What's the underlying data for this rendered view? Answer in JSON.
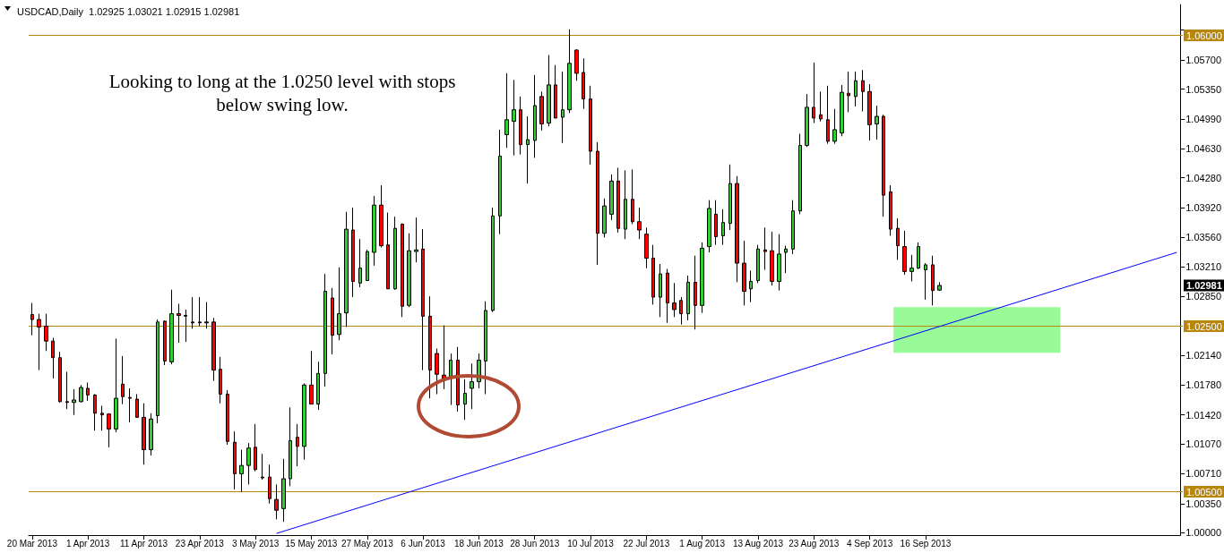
{
  "chart_data": {
    "type": "candlestick",
    "title": "USDCAD,Daily  1.02925 1.03021 1.02915 1.02981",
    "categories": [
      "20 Mar 2013",
      null,
      null,
      null,
      null,
      null,
      null,
      null,
      "1 Apr 2013",
      null,
      null,
      null,
      null,
      null,
      null,
      null,
      "11 Apr 2013",
      null,
      null,
      null,
      null,
      null,
      null,
      null,
      "23 Apr 2013",
      null,
      null,
      null,
      null,
      null,
      null,
      null,
      "3 May 2013",
      null,
      null,
      null,
      null,
      null,
      null,
      null,
      "15 May 2013",
      null,
      null,
      null,
      null,
      null,
      null,
      null,
      "27 May 2013",
      null,
      null,
      null,
      null,
      null,
      null,
      null,
      "6 Jun 2013",
      null,
      null,
      null,
      null,
      null,
      null,
      null,
      "18 Jun 2013",
      null,
      null,
      null,
      null,
      null,
      null,
      null,
      "28 Jun 2013",
      null,
      null,
      null,
      null,
      null,
      null,
      null,
      "10 Jul 2013",
      null,
      null,
      null,
      null,
      null,
      null,
      null,
      "22 Jul 2013",
      null,
      null,
      null,
      null,
      null,
      null,
      null,
      "1 Aug 2013",
      null,
      null,
      null,
      null,
      null,
      null,
      null,
      "13 Aug 2013",
      null,
      null,
      null,
      null,
      null,
      null,
      null,
      "23 Aug 2013",
      null,
      null,
      null,
      null,
      null,
      null,
      null,
      "4 Sep 2013",
      null,
      null,
      null,
      null,
      null,
      null,
      null,
      "16 Sep 2013",
      null,
      null,
      null,
      null,
      null,
      null,
      null,
      null,
      null,
      null,
      null,
      null,
      null,
      null,
      null,
      null,
      null,
      null,
      null,
      null,
      null,
      null,
      null,
      null,
      null,
      null,
      null,
      null,
      null,
      null,
      null,
      null,
      null,
      null,
      null,
      null
    ],
    "ohlc": [
      [
        1.0263,
        1.0277,
        1.0238,
        1.0257
      ],
      [
        1.0257,
        1.0264,
        1.0196,
        1.0248
      ],
      [
        1.0249,
        1.0264,
        1.0219,
        1.0231
      ],
      [
        1.0231,
        1.0235,
        1.0186,
        1.0211
      ],
      [
        1.0211,
        1.0218,
        1.0157,
        1.0158
      ],
      [
        1.0158,
        1.0194,
        1.0149,
        1.0157
      ],
      [
        1.0157,
        1.0173,
        1.0142,
        1.016
      ],
      [
        1.0158,
        1.0178,
        1.0157,
        1.0175
      ],
      [
        1.0174,
        1.0181,
        1.0159,
        1.0166
      ],
      [
        1.0166,
        1.0167,
        1.0123,
        1.0144
      ],
      [
        1.0144,
        1.0153,
        1.0123,
        1.0142
      ],
      [
        1.0143,
        1.0144,
        1.0103,
        1.0125
      ],
      [
        1.0125,
        1.0234,
        1.0121,
        1.0162
      ],
      [
        1.0179,
        1.0213,
        1.0155,
        1.0164
      ],
      [
        1.0163,
        1.0174,
        1.0133,
        1.0162
      ],
      [
        1.0161,
        1.0167,
        1.0139,
        1.0139
      ],
      [
        1.0139,
        1.0156,
        1.0082,
        1.01
      ],
      [
        1.01,
        1.0144,
        1.0093,
        1.0137
      ],
      [
        1.0141,
        1.0257,
        1.0132,
        1.0254
      ],
      [
        1.0255,
        1.0256,
        1.0202,
        1.0207
      ],
      [
        1.0206,
        1.0293,
        1.0203,
        1.0264
      ],
      [
        1.0264,
        1.0276,
        1.0229,
        1.0262
      ],
      [
        1.0262,
        1.0269,
        1.023,
        1.0261
      ],
      [
        1.0254,
        1.0284,
        1.0246,
        1.0253
      ],
      [
        1.0254,
        1.0284,
        1.0249,
        1.0253
      ],
      [
        1.0254,
        1.0278,
        1.0246,
        1.0253
      ],
      [
        1.0254,
        1.0259,
        1.0183,
        1.0196
      ],
      [
        1.0197,
        1.0212,
        1.0156,
        1.0167
      ],
      [
        1.0167,
        1.0172,
        1.0106,
        1.011
      ],
      [
        1.0109,
        1.0122,
        1.0052,
        1.0071
      ],
      [
        1.0071,
        1.01,
        1.0049,
        1.0081
      ],
      [
        1.0081,
        1.0108,
        1.0058,
        1.0102
      ],
      [
        1.0103,
        1.0131,
        1.0074,
        1.0076
      ],
      [
        1.0067,
        1.0095,
        1.0064,
        1.0066
      ],
      [
        1.0067,
        1.0082,
        1.0035,
        1.0041
      ],
      [
        1.004,
        1.0058,
        1.0016,
        1.0027
      ],
      [
        1.0029,
        1.0089,
        1.0013,
        1.0065
      ],
      [
        1.0065,
        1.0151,
        1.0056,
        1.0111
      ],
      [
        1.0115,
        1.0131,
        1.008,
        1.0104
      ],
      [
        1.0104,
        1.018,
        1.0088,
        1.0178
      ],
      [
        1.0178,
        1.0219,
        1.0155,
        1.0155
      ],
      [
        1.0155,
        1.0206,
        1.0148,
        1.0192
      ],
      [
        1.0192,
        1.0312,
        1.0176,
        1.0291
      ],
      [
        1.0283,
        1.0295,
        1.0215,
        1.0238
      ],
      [
        1.0239,
        1.032,
        1.0232,
        1.0264
      ],
      [
        1.0265,
        1.0387,
        1.0248,
        1.0366
      ],
      [
        1.0365,
        1.0392,
        1.0284,
        1.0303
      ],
      [
        1.0301,
        1.0354,
        1.0296,
        1.0319
      ],
      [
        1.0304,
        1.0341,
        1.0304,
        1.0339
      ],
      [
        1.0338,
        1.0406,
        1.0322,
        1.0395
      ],
      [
        1.0395,
        1.0419,
        1.0344,
        1.0346
      ],
      [
        1.0347,
        1.0386,
        1.0294,
        1.0294
      ],
      [
        1.0294,
        1.0381,
        1.0293,
        1.0367
      ],
      [
        1.0372,
        1.0373,
        1.026,
        1.0273
      ],
      [
        1.0274,
        1.0361,
        1.0272,
        1.034
      ],
      [
        1.0339,
        1.038,
        1.0326,
        1.0341
      ],
      [
        1.0342,
        1.0366,
        1.0196,
        1.0261
      ],
      [
        1.0261,
        1.0285,
        1.0162,
        1.0196
      ],
      [
        1.0216,
        1.0222,
        1.0167,
        1.0191
      ],
      [
        1.019,
        1.025,
        1.0173,
        1.0186
      ],
      [
        1.0186,
        1.0216,
        1.0154,
        1.0208
      ],
      [
        1.0208,
        1.0224,
        1.0146,
        1.0154
      ],
      [
        1.0155,
        1.0185,
        1.0136,
        1.0168
      ],
      [
        1.0174,
        1.0204,
        1.0149,
        1.0182
      ],
      [
        1.0182,
        1.0216,
        1.0174,
        1.0208
      ],
      [
        1.0207,
        1.0279,
        1.0167,
        1.0268
      ],
      [
        1.0268,
        1.0392,
        1.0266,
        1.0382
      ],
      [
        1.0382,
        1.0486,
        1.036,
        1.0454
      ],
      [
        1.048,
        1.0554,
        1.0464,
        1.0498
      ],
      [
        1.0496,
        1.0546,
        1.0455,
        1.051
      ],
      [
        1.051,
        1.0526,
        1.0456,
        1.0468
      ],
      [
        1.0468,
        1.0502,
        1.0421,
        1.0474
      ],
      [
        1.0473,
        1.0552,
        1.0452,
        1.0515
      ],
      [
        1.0526,
        1.0532,
        1.0485,
        1.0493
      ],
      [
        1.0494,
        1.0576,
        1.049,
        1.054
      ],
      [
        1.054,
        1.0564,
        1.05,
        1.05
      ],
      [
        1.0501,
        1.0556,
        1.047,
        1.051
      ],
      [
        1.051,
        1.0607,
        1.0506,
        1.0566
      ],
      [
        1.0582,
        1.0583,
        1.0545,
        1.0554
      ],
      [
        1.0555,
        1.0572,
        1.0511,
        1.0523
      ],
      [
        1.0523,
        1.0539,
        1.0444,
        1.046
      ],
      [
        1.046,
        1.0471,
        1.0323,
        1.0361
      ],
      [
        1.0361,
        1.0403,
        1.0356,
        1.0394
      ],
      [
        1.0384,
        1.0432,
        1.0377,
        1.0424
      ],
      [
        1.0424,
        1.044,
        1.0362,
        1.0367
      ],
      [
        1.0366,
        1.0437,
        1.0354,
        1.0402
      ],
      [
        1.0402,
        1.0438,
        1.0372,
        1.0375
      ],
      [
        1.0375,
        1.0392,
        1.0354,
        1.0365
      ],
      [
        1.036,
        1.0368,
        1.0319,
        1.0331
      ],
      [
        1.0331,
        1.0347,
        1.0275,
        1.0284
      ],
      [
        1.0284,
        1.0324,
        1.026,
        1.0312
      ],
      [
        1.0313,
        1.0318,
        1.0253,
        1.0277
      ],
      [
        1.0277,
        1.0301,
        1.026,
        1.0269
      ],
      [
        1.028,
        1.0284,
        1.0251,
        1.0264
      ],
      [
        1.0264,
        1.031,
        1.0256,
        1.0302
      ],
      [
        1.0302,
        1.0334,
        1.0245,
        1.0274
      ],
      [
        1.0274,
        1.035,
        1.0265,
        1.0343
      ],
      [
        1.0345,
        1.0401,
        1.0338,
        1.0391
      ],
      [
        1.0384,
        1.0401,
        1.0347,
        1.0357
      ],
      [
        1.0358,
        1.039,
        1.0347,
        1.0374
      ],
      [
        1.0373,
        1.0444,
        1.0365,
        1.0421
      ],
      [
        1.0421,
        1.043,
        1.0302,
        1.0325
      ],
      [
        1.0325,
        1.0352,
        1.0274,
        1.0291
      ],
      [
        1.0294,
        1.0316,
        1.0278,
        1.0303
      ],
      [
        1.0304,
        1.0347,
        1.0301,
        1.0342
      ],
      [
        1.0341,
        1.0368,
        1.0317,
        1.0339
      ],
      [
        1.034,
        1.0363,
        1.0298,
        1.0303
      ],
      [
        1.0303,
        1.036,
        1.0292,
        1.0336
      ],
      [
        1.0338,
        1.0346,
        1.0313,
        1.0342
      ],
      [
        1.0342,
        1.0401,
        1.0336,
        1.0388
      ],
      [
        1.0388,
        1.0481,
        1.0384,
        1.0467
      ],
      [
        1.0467,
        1.0529,
        1.0465,
        1.0513
      ],
      [
        1.0513,
        1.0567,
        1.0494,
        1.05
      ],
      [
        1.0504,
        1.0532,
        1.0496,
        1.0499
      ],
      [
        1.0498,
        1.0539,
        1.0469,
        1.0472
      ],
      [
        1.0472,
        1.0511,
        1.0469,
        1.0486
      ],
      [
        1.0482,
        1.054,
        1.0478,
        1.0531
      ],
      [
        1.053,
        1.0556,
        1.0507,
        1.0527
      ],
      [
        1.0526,
        1.0556,
        1.0514,
        1.0545
      ],
      [
        1.0545,
        1.0558,
        1.0508,
        1.0532
      ],
      [
        1.0532,
        1.0541,
        1.0473,
        1.0492
      ],
      [
        1.0493,
        1.0515,
        1.0474,
        1.0502
      ],
      [
        1.0502,
        1.0504,
        1.0381,
        1.0407
      ],
      [
        1.0411,
        1.0419,
        1.0358,
        1.0366
      ],
      [
        1.0367,
        1.0379,
        1.0329,
        1.0346
      ],
      [
        1.0345,
        1.0364,
        1.0311,
        1.0315
      ],
      [
        1.0315,
        1.0335,
        1.0303,
        1.0319
      ],
      [
        1.0319,
        1.035,
        1.0318,
        1.0345
      ],
      [
        1.0317,
        1.0325,
        1.0281,
        1.0323
      ],
      [
        1.0323,
        1.0334,
        1.0274,
        1.0292
      ],
      [
        1.02925,
        1.03021,
        1.02915,
        1.02981
      ],
      null,
      null,
      null,
      null,
      null,
      null,
      null,
      null,
      null,
      null,
      null,
      null,
      null,
      null,
      null,
      null,
      null,
      null,
      null,
      null,
      null,
      null,
      null,
      null,
      null,
      null,
      null,
      null,
      null,
      null,
      null,
      null,
      null,
      null
    ],
    "colors": [
      "#ff0000",
      "#ff0000",
      "#ff0000",
      "#ff0000",
      "#ff0000",
      "#ff0000",
      "#32cd32",
      "#32cd32",
      "#ff0000",
      "#ff0000",
      "#ff0000",
      "#ff0000",
      "#32cd32",
      "#ff0000",
      "#ff0000",
      "#ff0000",
      "#ff0000",
      "#32cd32",
      "#32cd32",
      "#ff0000",
      "#32cd32",
      "#ff0000",
      "#ff0000",
      "#ff0000",
      "#ff0000",
      "#ff0000",
      "#ff0000",
      "#ff0000",
      "#ff0000",
      "#ff0000",
      "#32cd32",
      "#32cd32",
      "#ff0000",
      "#ff0000",
      "#ff0000",
      "#ff0000",
      "#32cd32",
      "#32cd32",
      "#ff0000",
      "#32cd32",
      "#ff0000",
      "#32cd32",
      "#32cd32",
      "#ff0000",
      "#32cd32",
      "#32cd32",
      "#ff0000",
      "#32cd32",
      "#32cd32",
      "#32cd32",
      "#ff0000",
      "#ff0000",
      "#32cd32",
      "#ff0000",
      "#32cd32",
      "#32cd32",
      "#ff0000",
      "#ff0000",
      "#ff0000",
      "#ff0000",
      "#32cd32",
      "#ff0000",
      "#32cd32",
      "#32cd32",
      "#32cd32",
      "#32cd32",
      "#32cd32",
      "#32cd32",
      "#32cd32",
      "#32cd32",
      "#ff0000",
      "#32cd32",
      "#32cd32",
      "#ff0000",
      "#32cd32",
      "#ff0000",
      "#32cd32",
      "#32cd32",
      "#ff0000",
      "#ff0000",
      "#ff0000",
      "#ff0000",
      "#32cd32",
      "#32cd32",
      "#ff0000",
      "#32cd32",
      "#ff0000",
      "#ff0000",
      "#ff0000",
      "#ff0000",
      "#32cd32",
      "#ff0000",
      "#ff0000",
      "#ff0000",
      "#32cd32",
      "#ff0000",
      "#32cd32",
      "#32cd32",
      "#ff0000",
      "#32cd32",
      "#32cd32",
      "#ff0000",
      "#ff0000",
      "#32cd32",
      "#32cd32",
      "#ff0000",
      "#ff0000",
      "#32cd32",
      "#32cd32",
      "#32cd32",
      "#32cd32",
      "#32cd32",
      "#ff0000",
      "#ff0000",
      "#ff0000",
      "#32cd32",
      "#32cd32",
      "#ff0000",
      "#32cd32",
      "#ff0000",
      "#ff0000",
      "#32cd32",
      "#ff0000",
      "#ff0000",
      "#ff0000",
      "#ff0000",
      "#32cd32",
      "#32cd32",
      "#32cd32",
      "#ff0000",
      "#32cd32",
      null,
      null,
      null,
      null,
      null,
      null,
      null,
      null,
      null,
      null,
      null,
      null,
      null,
      null,
      null,
      null,
      null,
      null,
      null,
      null,
      null,
      null,
      null,
      null,
      null,
      null,
      null,
      null,
      null,
      null,
      null,
      null,
      null,
      null
    ],
    "series": [
      {
        "type": "line",
        "color": "#0000ff",
        "values": [
          null,
          null,
          null,
          null,
          null,
          null,
          null,
          null,
          null,
          null,
          null,
          null,
          null,
          null,
          null,
          null,
          null,
          null,
          null,
          null,
          null,
          null,
          null,
          null,
          null,
          null,
          null,
          null,
          null,
          null,
          null,
          null,
          null,
          null,
          null,
          0.9999,
          null,
          null,
          null,
          null,
          null,
          null,
          null,
          null,
          null,
          null,
          null,
          null,
          null,
          null,
          null,
          null,
          null,
          null,
          null,
          null,
          null,
          null,
          null,
          null,
          null,
          null,
          null,
          null,
          null,
          null,
          null,
          null,
          null,
          null,
          null,
          null,
          null,
          null,
          null,
          null,
          null,
          null,
          null,
          null,
          null,
          null,
          null,
          null,
          null,
          null,
          null,
          null,
          null,
          null,
          null,
          null,
          null,
          null,
          null,
          null,
          null,
          null,
          null,
          null,
          null,
          null,
          null,
          null,
          null,
          null,
          null,
          null,
          null,
          null,
          null,
          null,
          null,
          null,
          null,
          null,
          null,
          null,
          null,
          null,
          null,
          null,
          null,
          null,
          null,
          null,
          null,
          null,
          null,
          null,
          null,
          null,
          null,
          null,
          null,
          null,
          null,
          null,
          null,
          null,
          null,
          null,
          null,
          null,
          null,
          null,
          null,
          null,
          null,
          null,
          null,
          null,
          null,
          null,
          null,
          null,
          null,
          null,
          null,
          null,
          null,
          null,
          null,
          null,
          1.0338
        ]
      }
    ],
    "ylim": [
      0.9997,
      1.0637
    ],
    "yticks": [
      {
        "value": 1.0,
        "label": "1.00000"
      },
      {
        "value": 1.0035,
        "label": "1.00350"
      },
      {
        "value": 1.0071,
        "label": "1.00710"
      },
      {
        "value": 1.0107,
        "label": "1.01070"
      },
      {
        "value": 1.0142,
        "label": "1.01420"
      },
      {
        "value": 1.0178,
        "label": "1.01780"
      },
      {
        "value": 1.0214,
        "label": "1.02140"
      },
      {
        "value": 1.0285,
        "label": "1.02850"
      },
      {
        "value": 1.0321,
        "label": "1.03210"
      },
      {
        "value": 1.0356,
        "label": "1.03560"
      },
      {
        "value": 1.0392,
        "label": "1.03920"
      },
      {
        "value": 1.0428,
        "label": "1.04280"
      },
      {
        "value": 1.0463,
        "label": "1.04630"
      },
      {
        "value": 1.0499,
        "label": "1.04990"
      },
      {
        "value": 1.0535,
        "label": "1.05350"
      },
      {
        "value": 1.057,
        "label": "1.05700"
      },
      {
        "value": 1.0606,
        "label": null
      }
    ],
    "ref_lines": [
      {
        "axis": "y",
        "value": 1.06,
        "label": "1.06000",
        "color": "#b8860b"
      },
      {
        "axis": "y",
        "value": 1.025,
        "label": "1.02500",
        "color": "#b8860b"
      },
      {
        "axis": "y",
        "value": 1.005,
        "label": "1.00500",
        "color": "#b8860b"
      }
    ],
    "bands": [
      {
        "axis": "y",
        "from": 1.0217,
        "to": 1.0272,
        "color": "#98fb98"
      }
    ],
    "annotations": [
      "Looking to long at the 1.0250 level with stops below swing low.",
      "1.02981"
    ],
    "grid": false,
    "marker": "none"
  }
}
